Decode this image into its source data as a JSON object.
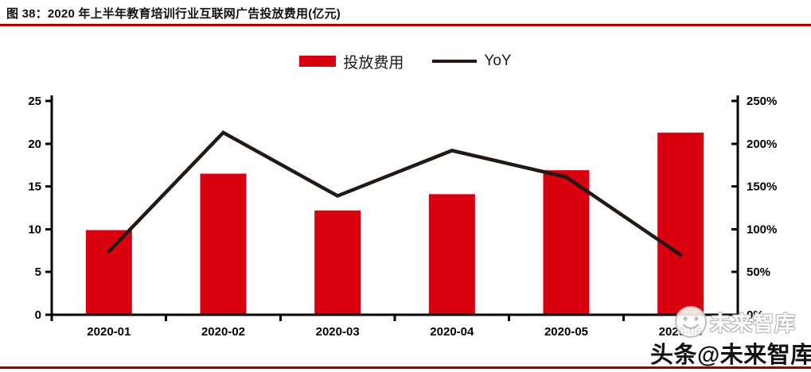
{
  "header": {
    "title": "图 38：2020 年上半年教育培训行业互联网广告投放费用(亿元)"
  },
  "legend": {
    "items": [
      {
        "label": "投放费用",
        "type": "bar"
      },
      {
        "label": "YoY",
        "type": "line"
      }
    ]
  },
  "watermark": {
    "small_text": "未来智库",
    "large_text": "头条@未来智库",
    "logo": "smiley-face-logo"
  },
  "colors": {
    "bar_red": "#d9000f",
    "line_black": "#231815",
    "axis_black": "#000000",
    "title_rule_red": "#b00000",
    "bottom_rule_red": "#9e0000",
    "watermark_gray": "#b5b5b5"
  },
  "chart_data": {
    "type": "bar",
    "subtype": "bar+line dual axis",
    "title": "2020 年上半年教育培训行业互联网广告投放费用(亿元)",
    "categories": [
      "2020-01",
      "2020-02",
      "2020-03",
      "2020-04",
      "2020-05",
      "2020-06"
    ],
    "series": [
      {
        "name": "投放费用",
        "type": "bar",
        "axis": "left",
        "color": "#d9000f",
        "values": [
          9.9,
          16.5,
          12.2,
          14.1,
          16.9,
          21.3
        ]
      },
      {
        "name": "YoY",
        "type": "line",
        "axis": "right",
        "color": "#231815",
        "values": [
          74,
          213,
          139,
          192,
          161,
          70
        ]
      }
    ],
    "left_axis": {
      "min": 0,
      "max": 25,
      "step": 5,
      "tick_labels": [
        "0",
        "5",
        "10",
        "15",
        "20",
        "25"
      ]
    },
    "right_axis": {
      "min": 0,
      "max": 250,
      "step": 50,
      "unit": "%",
      "tick_labels": [
        "0%",
        "50%",
        "100%",
        "150%",
        "200%",
        "250%"
      ]
    },
    "grid": false,
    "legend_position": "top-center"
  }
}
